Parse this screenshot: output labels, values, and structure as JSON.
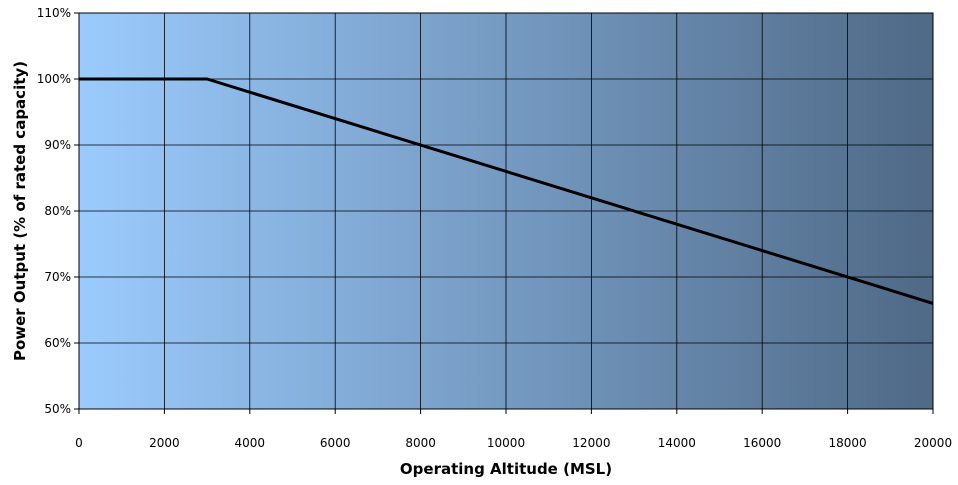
{
  "chart_data": {
    "type": "line",
    "title": "",
    "xlabel": "Operating Altitude (MSL)",
    "ylabel": "Power Output (% of rated capacity)",
    "xlim": [
      0,
      20000
    ],
    "ylim": [
      50,
      110
    ],
    "x_ticks": [
      0,
      2000,
      4000,
      6000,
      8000,
      10000,
      12000,
      14000,
      16000,
      18000,
      20000
    ],
    "x_tick_labels": [
      "0",
      "2000",
      "4000",
      "6000",
      "8000",
      "10000",
      "12000",
      "14000",
      "16000",
      "18000",
      "20000"
    ],
    "y_ticks": [
      50,
      60,
      70,
      80,
      90,
      100,
      110
    ],
    "y_tick_labels": [
      "50%",
      "60%",
      "70%",
      "80%",
      "90%",
      "100%",
      "110%"
    ],
    "grid": true,
    "legend": "none",
    "background_gradient": [
      "#9bcbfd",
      "#4f6986"
    ],
    "line_color": "#000000",
    "series": [
      {
        "x": [
          0,
          3000,
          20000
        ],
        "y": [
          100,
          100,
          66
        ]
      }
    ]
  }
}
